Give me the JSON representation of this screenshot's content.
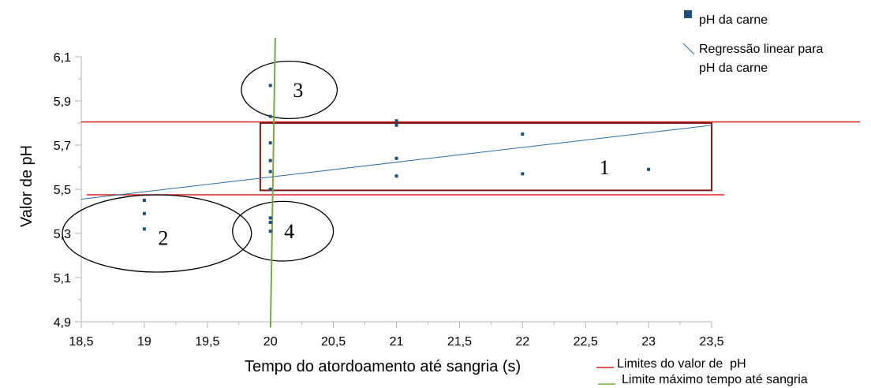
{
  "chart_data": {
    "type": "scatter",
    "xlabel": "Tempo do atordoamento até sangria (s)",
    "ylabel": "Valor de pH",
    "xlim": [
      18.5,
      23.5
    ],
    "ylim": [
      4.9,
      6.1
    ],
    "x_ticks": [
      "18,5",
      "19",
      "19,5",
      "20",
      "20,5",
      "21",
      "21,5",
      "22",
      "22,5",
      "23",
      "23,5"
    ],
    "y_ticks": [
      "4,9",
      "5,1",
      "5,3",
      "5,5",
      "5,7",
      "5,9",
      "6,1"
    ],
    "series": [
      {
        "name": "pH da carne",
        "color": "#1f4e79",
        "points": [
          [
            19,
            5.45
          ],
          [
            19,
            5.39
          ],
          [
            19,
            5.32
          ],
          [
            20,
            5.97
          ],
          [
            20,
            5.83
          ],
          [
            20,
            5.71
          ],
          [
            20,
            5.63
          ],
          [
            20,
            5.58
          ],
          [
            20,
            5.5
          ],
          [
            20,
            5.37
          ],
          [
            20,
            5.35
          ],
          [
            20,
            5.31
          ],
          [
            21,
            5.81
          ],
          [
            21,
            5.79
          ],
          [
            21,
            5.64
          ],
          [
            21,
            5.56
          ],
          [
            22,
            5.75
          ],
          [
            22,
            5.57
          ],
          [
            23,
            5.59
          ]
        ]
      }
    ],
    "regression": {
      "name": "Regressão linear para pH da carne",
      "color": "#2e6da4",
      "from": [
        18.5,
        5.455
      ],
      "to": [
        23.5,
        5.79
      ]
    },
    "ph_limits": {
      "name": "Limites do valor de  pH",
      "color": "#e02020",
      "lower": 5.475,
      "upper": 5.805
    },
    "max_time": {
      "name": "Limite máximo tempo até sangria",
      "color": "#77aa44",
      "x": 20.02
    },
    "regions": [
      {
        "label": "1",
        "shape": "rect",
        "color": "#7b1c1c",
        "x_range": [
          19.92,
          23.5
        ],
        "y_range": [
          5.495,
          5.8
        ],
        "label_at": [
          22.65,
          5.6
        ]
      },
      {
        "label": "2",
        "shape": "ellipse",
        "color": "#000000",
        "center": [
          19.1,
          5.3
        ],
        "radius": [
          0.75,
          0.175
        ],
        "label_at": [
          19.15,
          5.28
        ]
      },
      {
        "label": "3",
        "shape": "ellipse",
        "color": "#000000",
        "center": [
          20.15,
          5.95
        ],
        "radius": [
          0.38,
          0.13
        ],
        "label_at": [
          20.22,
          5.95
        ]
      },
      {
        "label": "4",
        "shape": "ellipse",
        "color": "#000000",
        "center": [
          20.1,
          5.31
        ],
        "radius": [
          0.4,
          0.135
        ],
        "label_at": [
          20.15,
          5.31
        ]
      }
    ],
    "legend_placement": "top-right and bottom-right"
  }
}
